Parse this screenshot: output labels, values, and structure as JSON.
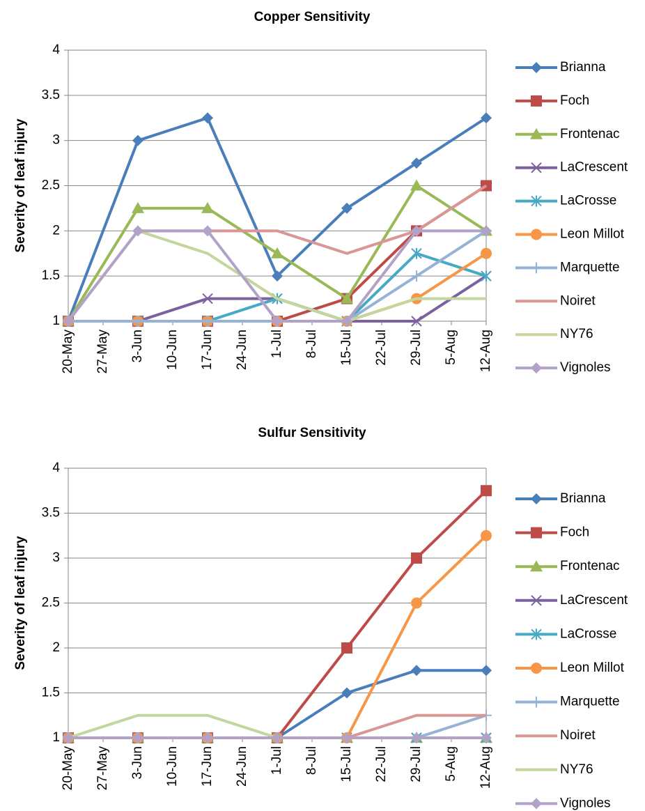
{
  "chart_data": [
    {
      "type": "line",
      "title": "Copper Sensitivity",
      "y_label": "Severity of leaf injury",
      "xticks": [
        "20-May",
        "27-May",
        "3-Jun",
        "10-Jun",
        "17-Jun",
        "24-Jun",
        "1-Jul",
        "8-Jul",
        "15-Jul",
        "22-Jul",
        "29-Jul",
        "5-Aug",
        "12-Aug"
      ],
      "x": [
        "20-May",
        "3-Jun",
        "17-Jun",
        "1-Jul",
        "15-Jul",
        "29-Jul",
        "12-Aug"
      ],
      "ylim": [
        1,
        4
      ],
      "yticks": [
        1,
        1.5,
        2,
        2.5,
        3,
        3.5,
        4
      ],
      "grid": true,
      "legend": "right",
      "series": [
        {
          "name": "Brianna",
          "color": "#4a7ebb",
          "marker": "diamond",
          "values": [
            1,
            3,
            3.25,
            1.5,
            2.25,
            2.75,
            3.25
          ]
        },
        {
          "name": "Foch",
          "color": "#be4b48",
          "marker": "square",
          "values": [
            1,
            1,
            1,
            1,
            1.25,
            2,
            2.5
          ]
        },
        {
          "name": "Frontenac",
          "color": "#98b954",
          "marker": "triangle",
          "values": [
            1,
            2.25,
            2.25,
            1.75,
            1.25,
            2.5,
            2
          ]
        },
        {
          "name": "LaCrescent",
          "color": "#7d60a0",
          "marker": "x",
          "values": [
            1,
            1,
            1.25,
            1.25,
            1,
            1,
            1.5
          ]
        },
        {
          "name": "LaCrosse",
          "color": "#46aac5",
          "marker": "star",
          "values": [
            1,
            1,
            1,
            1.25,
            1,
            1.75,
            1.5
          ]
        },
        {
          "name": "Leon Millot",
          "color": "#f79646",
          "marker": "circle",
          "values": [
            1,
            1,
            1,
            1,
            1,
            1.25,
            1.75
          ]
        },
        {
          "name": "Marquette",
          "color": "#95b3d7",
          "marker": "plus",
          "values": [
            1,
            1,
            1,
            1,
            1,
            1.5,
            2
          ]
        },
        {
          "name": "Noiret",
          "color": "#d99694",
          "marker": "none",
          "values": [
            1,
            2,
            2,
            2,
            1.75,
            2,
            2.5
          ]
        },
        {
          "name": "NY76",
          "color": "#c3d69b",
          "marker": "none",
          "values": [
            1,
            2,
            1.75,
            1.25,
            1,
            1.25,
            1.25
          ]
        },
        {
          "name": "Vignoles",
          "color": "#b3a2c7",
          "marker": "diamond",
          "values": [
            1,
            2,
            2,
            1,
            1,
            2,
            2
          ]
        }
      ]
    },
    {
      "type": "line",
      "title": "Sulfur Sensitivity",
      "y_label": "Severity of leaf injury",
      "xticks": [
        "20-May",
        "27-May",
        "3-Jun",
        "10-Jun",
        "17-Jun",
        "24-Jun",
        "1-Jul",
        "8-Jul",
        "15-Jul",
        "22-Jul",
        "29-Jul",
        "5-Aug",
        "12-Aug"
      ],
      "x": [
        "20-May",
        "3-Jun",
        "17-Jun",
        "1-Jul",
        "15-Jul",
        "29-Jul",
        "12-Aug"
      ],
      "ylim": [
        1,
        4
      ],
      "yticks": [
        1,
        1.5,
        2,
        2.5,
        3,
        3.5,
        4
      ],
      "grid": true,
      "legend": "right",
      "series": [
        {
          "name": "Brianna",
          "color": "#4a7ebb",
          "marker": "diamond",
          "values": [
            1,
            1,
            1,
            1,
            1.5,
            1.75,
            1.75
          ]
        },
        {
          "name": "Foch",
          "color": "#be4b48",
          "marker": "square",
          "values": [
            1,
            1,
            1,
            1,
            2,
            3,
            3.75
          ]
        },
        {
          "name": "Frontenac",
          "color": "#98b954",
          "marker": "triangle",
          "values": [
            1,
            1,
            1,
            1,
            1,
            1,
            1
          ]
        },
        {
          "name": "LaCrescent",
          "color": "#7d60a0",
          "marker": "x",
          "values": [
            1,
            1,
            1,
            1,
            1,
            1,
            1
          ]
        },
        {
          "name": "LaCrosse",
          "color": "#46aac5",
          "marker": "star",
          "values": [
            1,
            1,
            1,
            1,
            1,
            1,
            1
          ]
        },
        {
          "name": "Leon Millot",
          "color": "#f79646",
          "marker": "circle",
          "values": [
            1,
            1,
            1,
            1,
            1,
            2.5,
            3.25
          ]
        },
        {
          "name": "Marquette",
          "color": "#95b3d7",
          "marker": "plus",
          "values": [
            1,
            1,
            1,
            1,
            1,
            1,
            1.25
          ]
        },
        {
          "name": "Noiret",
          "color": "#d99694",
          "marker": "none",
          "values": [
            1,
            1,
            1,
            1,
            1,
            1.25,
            1.25
          ]
        },
        {
          "name": "NY76",
          "color": "#c3d69b",
          "marker": "none",
          "values": [
            1,
            1.25,
            1.25,
            1,
            1,
            1,
            1
          ]
        },
        {
          "name": "Vignoles",
          "color": "#b3a2c7",
          "marker": "diamond",
          "values": [
            1,
            1,
            1,
            1,
            1,
            1,
            1
          ]
        }
      ]
    }
  ]
}
